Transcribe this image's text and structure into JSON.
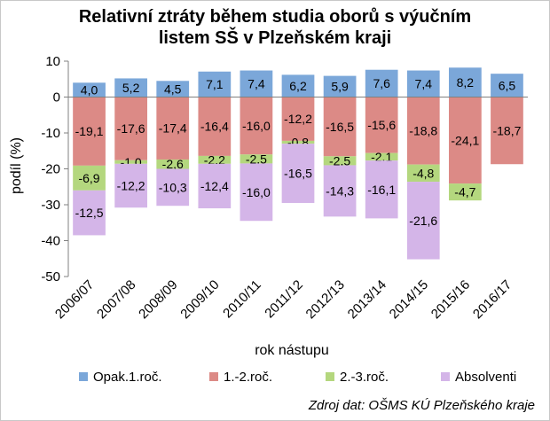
{
  "chart_data": {
    "type": "bar",
    "stacked": true,
    "title_line1": "Relativní ztráty během studia oborů s výučním",
    "title_line2": "listem SŠ v Plzeňském kraji",
    "xlabel": "rok nástupu",
    "ylabel": "podíl (%)",
    "ylim": [
      -50,
      10
    ],
    "yticks": [
      10,
      0,
      -10,
      -20,
      -30,
      -40,
      -50
    ],
    "ytick_labels": [
      "10",
      "0",
      "-10",
      "-20",
      "-30",
      "-40",
      "-50"
    ],
    "grid": false,
    "legend_position": "bottom",
    "categories": [
      "2006/07",
      "2007/08",
      "2008/09",
      "2009/10",
      "2010/11",
      "2011/12",
      "2012/13",
      "2013/14",
      "2014/15",
      "2015/16",
      "2016/17"
    ],
    "series": [
      {
        "name": "Opak.1.roč.",
        "color": "#7ba7d9",
        "values": [
          4.0,
          5.2,
          4.5,
          7.1,
          7.4,
          6.2,
          5.9,
          7.6,
          7.4,
          8.2,
          6.5
        ],
        "labels": [
          "4,0",
          "5,2",
          "4,5",
          "7,1",
          "7,4",
          "6,2",
          "5,9",
          "7,6",
          "7,4",
          "8,2",
          "6,5"
        ]
      },
      {
        "name": "1.-2.roč.",
        "color": "#dc8a86",
        "values": [
          -19.1,
          -17.6,
          -17.4,
          -16.4,
          -16.0,
          -12.2,
          -16.5,
          -15.6,
          -18.8,
          -24.1,
          -18.7
        ],
        "labels": [
          "-19,1",
          "-17,6",
          "-17,4",
          "-16,4",
          "-16,0",
          "-12,2",
          "-16,5",
          "-15,6",
          "-18,8",
          "-24,1",
          "-18,7"
        ]
      },
      {
        "name": "2.-3.roč.",
        "color": "#b4d77e",
        "values": [
          -6.9,
          -1.0,
          -2.6,
          -2.2,
          -2.5,
          -0.8,
          -2.5,
          -2.1,
          -4.8,
          -4.7,
          null
        ],
        "labels": [
          "-6,9",
          "-1,0",
          "-2,6",
          "-2,2",
          "-2,5",
          "-0,8",
          "-2,5",
          "-2,1",
          "-4,8",
          "-4,7",
          null
        ]
      },
      {
        "name": "Absolventi",
        "color": "#d4b5e8",
        "values": [
          -12.5,
          -12.2,
          -10.3,
          -12.4,
          -16.0,
          -16.5,
          -14.3,
          -16.1,
          -21.6,
          null,
          null
        ],
        "labels": [
          "-12,5",
          "-12,2",
          "-10,3",
          "-12,4",
          "-16,0",
          "-16,5",
          "-14,3",
          "-16,1",
          "-21,6",
          null,
          null
        ]
      }
    ]
  },
  "source_text": "Zdroj dat: OŠMS KÚ Plzeňského kraje"
}
